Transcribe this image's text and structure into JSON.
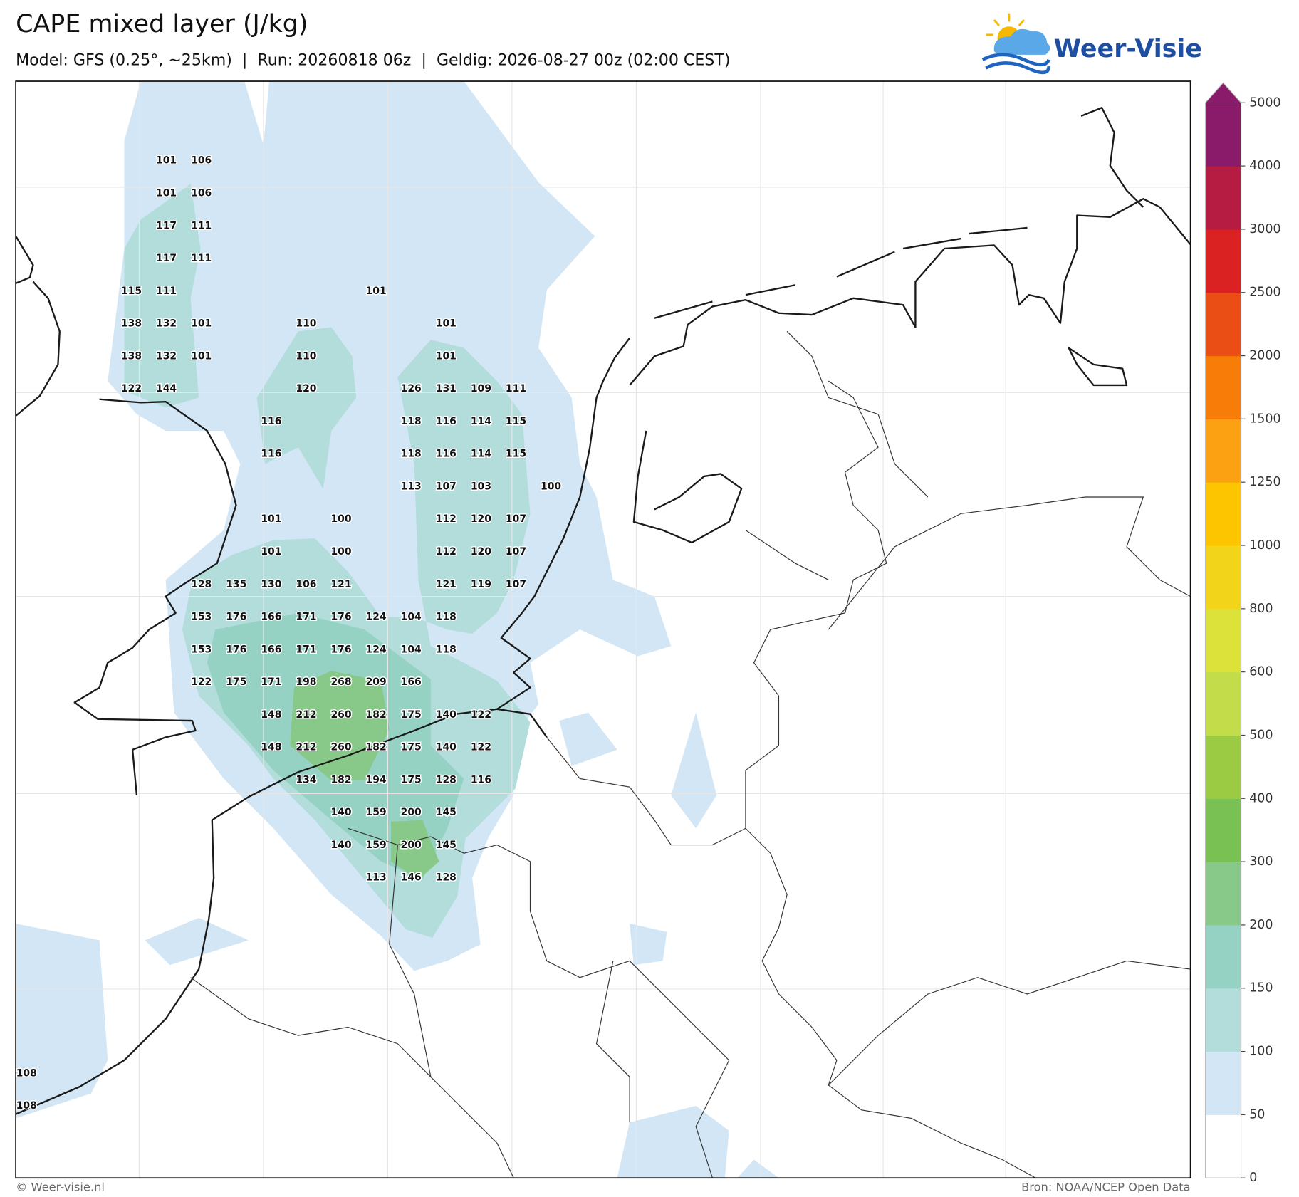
{
  "header": {
    "title": "CAPE mixed layer (J/kg)",
    "subtitle": "Model: GFS (0.25°, ~25km)  |  Run: 20260818 06z  |  Geldig: 2026-08-27 00z (02:00 CEST)",
    "logo": "Weer-Visie"
  },
  "colorbar": {
    "ticks": [
      0,
      50,
      100,
      150,
      200,
      300,
      400,
      500,
      600,
      800,
      1000,
      1250,
      1500,
      2000,
      2500,
      3000,
      4000,
      5000
    ],
    "colors": [
      "#ffffff",
      "#d2e6f5",
      "#b2dddb",
      "#96d2c4",
      "#88c888",
      "#78c152",
      "#9acb42",
      "#c2dc4a",
      "#dde23a",
      "#f2d51a",
      "#fcc500",
      "#fca212",
      "#f87d08",
      "#ea4e14",
      "#da2222",
      "#b61c42",
      "#8a1a6a"
    ]
  },
  "labels": {
    "rows": [
      [
        null,
        null,
        null,
        null,
        101,
        106,
        null,
        null,
        null,
        null,
        null,
        null,
        null,
        null,
        null,
        null
      ],
      [
        null,
        null,
        null,
        null,
        101,
        106,
        null,
        null,
        null,
        null,
        null,
        null,
        null,
        null,
        null,
        null
      ],
      [
        null,
        null,
        null,
        null,
        117,
        111,
        null,
        null,
        null,
        null,
        null,
        null,
        null,
        null,
        null,
        null
      ],
      [
        null,
        null,
        null,
        null,
        117,
        111,
        null,
        null,
        null,
        null,
        null,
        null,
        null,
        null,
        null,
        null
      ],
      [
        null,
        null,
        null,
        115,
        111,
        null,
        null,
        null,
        null,
        null,
        101,
        null,
        null,
        null,
        null,
        null
      ],
      [
        null,
        null,
        null,
        138,
        132,
        101,
        null,
        null,
        110,
        null,
        null,
        null,
        101,
        null,
        null,
        null
      ],
      [
        null,
        null,
        null,
        138,
        132,
        101,
        null,
        null,
        110,
        null,
        null,
        null,
        101,
        null,
        null,
        null
      ],
      [
        null,
        null,
        null,
        122,
        144,
        null,
        null,
        null,
        120,
        null,
        null,
        126,
        131,
        109,
        111,
        null
      ],
      [
        null,
        null,
        null,
        null,
        null,
        null,
        null,
        116,
        null,
        null,
        null,
        118,
        116,
        114,
        115,
        null
      ],
      [
        null,
        null,
        null,
        null,
        null,
        null,
        null,
        116,
        null,
        null,
        null,
        118,
        116,
        114,
        115,
        null
      ],
      [
        null,
        null,
        null,
        null,
        null,
        null,
        null,
        null,
        null,
        null,
        null,
        113,
        107,
        103,
        null,
        100
      ],
      [
        null,
        null,
        null,
        null,
        null,
        null,
        null,
        101,
        null,
        100,
        null,
        null,
        112,
        120,
        107,
        null
      ],
      [
        null,
        null,
        null,
        null,
        null,
        null,
        null,
        101,
        null,
        100,
        null,
        null,
        112,
        120,
        107,
        null
      ],
      [
        null,
        null,
        null,
        null,
        null,
        128,
        135,
        130,
        106,
        121,
        null,
        null,
        121,
        119,
        107,
        null
      ],
      [
        null,
        null,
        null,
        null,
        null,
        153,
        176,
        166,
        171,
        176,
        124,
        104,
        118,
        null,
        null,
        null
      ],
      [
        null,
        null,
        null,
        null,
        null,
        153,
        176,
        166,
        171,
        176,
        124,
        104,
        118,
        null,
        null,
        null
      ],
      [
        null,
        null,
        null,
        null,
        null,
        122,
        175,
        171,
        198,
        268,
        209,
        166,
        null,
        null,
        null,
        null
      ],
      [
        null,
        null,
        null,
        null,
        null,
        null,
        null,
        148,
        212,
        260,
        182,
        175,
        140,
        122,
        null,
        null
      ],
      [
        null,
        null,
        null,
        null,
        null,
        null,
        null,
        148,
        212,
        260,
        182,
        175,
        140,
        122,
        null,
        null
      ],
      [
        null,
        null,
        null,
        null,
        null,
        null,
        null,
        null,
        134,
        182,
        194,
        175,
        128,
        116,
        null,
        null
      ],
      [
        null,
        null,
        null,
        null,
        null,
        null,
        null,
        null,
        null,
        140,
        159,
        200,
        145,
        null,
        null,
        null
      ],
      [
        null,
        null,
        null,
        null,
        null,
        null,
        null,
        null,
        null,
        140,
        159,
        200,
        145,
        null,
        null,
        null
      ],
      [
        null,
        null,
        null,
        null,
        null,
        null,
        null,
        null,
        null,
        null,
        113,
        146,
        128,
        null,
        null,
        null
      ],
      [
        null,
        null,
        null,
        null,
        null,
        null,
        null,
        null,
        null,
        null,
        null,
        null,
        null,
        null,
        null,
        null
      ],
      [
        null,
        null,
        null,
        null,
        null,
        null,
        null,
        null,
        null,
        null,
        null,
        null,
        null,
        null,
        null,
        null
      ],
      [
        null,
        null,
        null,
        null,
        null,
        null,
        null,
        null,
        null,
        null,
        null,
        null,
        null,
        null,
        null,
        null
      ],
      [
        null,
        null,
        null,
        null,
        null,
        null,
        null,
        null,
        null,
        null,
        null,
        null,
        null,
        null,
        null,
        null
      ],
      [
        null,
        null,
        null,
        null,
        null,
        null,
        null,
        null,
        null,
        null,
        null,
        null,
        null,
        null,
        null,
        null
      ],
      [
        108,
        null,
        null,
        null,
        null,
        null,
        null,
        null,
        null,
        null,
        null,
        null,
        null,
        null,
        null,
        null
      ],
      [
        108,
        null,
        null,
        null,
        null,
        null,
        null,
        null,
        null,
        null,
        null,
        null,
        null,
        null,
        null,
        null
      ]
    ]
  },
  "footer": {
    "left": "© Weer-visie.nl",
    "right": "Bron: NOAA/NCEP Open Data"
  }
}
